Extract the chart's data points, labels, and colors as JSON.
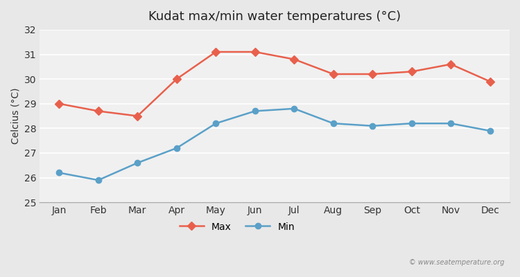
{
  "title": "Kudat max/min water temperatures (°C)",
  "ylabel": "Celcius (°C)",
  "months": [
    "Jan",
    "Feb",
    "Mar",
    "Apr",
    "May",
    "Jun",
    "Jul",
    "Aug",
    "Sep",
    "Oct",
    "Nov",
    "Dec"
  ],
  "max_temps": [
    29.0,
    28.7,
    28.5,
    30.0,
    31.1,
    31.1,
    30.8,
    30.2,
    30.2,
    30.3,
    30.6,
    29.9
  ],
  "min_temps": [
    26.2,
    25.9,
    26.6,
    27.2,
    28.2,
    28.7,
    28.8,
    28.2,
    28.1,
    28.2,
    28.2,
    27.9
  ],
  "max_color": "#e8604c",
  "min_color": "#5aa0c8",
  "bg_color": "#e8e8e8",
  "plot_bg_color": "#f0f0f0",
  "ylim": [
    25,
    32
  ],
  "yticks": [
    25,
    26,
    27,
    28,
    29,
    30,
    31,
    32
  ],
  "watermark": "© www.seatemperature.org",
  "legend_labels": [
    "Max",
    "Min"
  ]
}
